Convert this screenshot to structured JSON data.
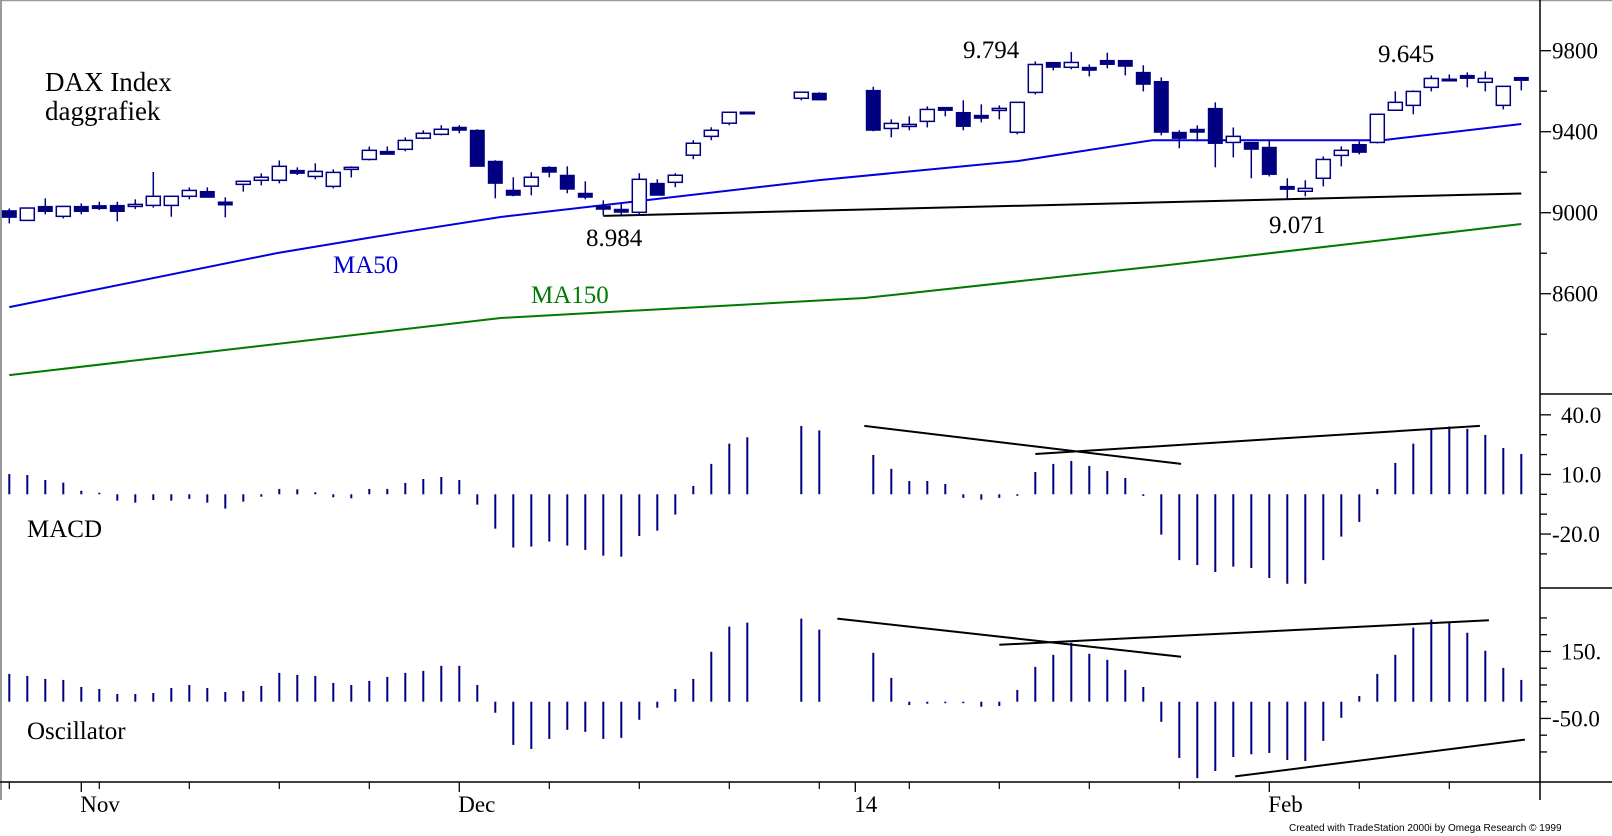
{
  "chart_data": {
    "type": "candlestick",
    "title": "DAX Index",
    "subtitle": "daggrafiek",
    "colors": {
      "candle": "#000080",
      "ma50": "#0000e0",
      "ma150": "#007a00",
      "trendline": "#000000",
      "histogram": "#000080"
    },
    "x_labels": [
      {
        "label": "Nov",
        "bar": 4
      },
      {
        "label": "Dec",
        "bar": 25
      },
      {
        "label": "14",
        "bar": 47
      },
      {
        "label": "Feb",
        "bar": 70
      }
    ],
    "price_panel": {
      "ylim": [
        8200,
        9980
      ],
      "yticks": [
        {
          "label": "9800",
          "value": 9800
        },
        {
          "label": "9400",
          "value": 9400
        },
        {
          "label": "9000",
          "value": 9000
        },
        {
          "label": "8600",
          "value": 8600
        }
      ],
      "minor_ticks": [
        9600,
        9200,
        8800,
        8400
      ],
      "candles_ohlc": [
        [
          9010,
          9021,
          8947,
          8977
        ],
        [
          8962,
          9023,
          8962,
          9023
        ],
        [
          9031,
          9071,
          8992,
          9006
        ],
        [
          8982,
          9031,
          8972,
          9031
        ],
        [
          9031,
          9046,
          8992,
          9006
        ],
        [
          9035,
          9054,
          9013,
          9033
        ],
        [
          9036,
          9054,
          8957,
          9006
        ],
        [
          9031,
          9066,
          9018,
          9041
        ],
        [
          9036,
          9201,
          9025,
          9081
        ],
        [
          9036,
          9081,
          8980,
          9081
        ],
        [
          9081,
          9125,
          9066,
          9110
        ],
        [
          9105,
          9125,
          9076,
          9076
        ],
        [
          9053,
          9076,
          8977,
          9051
        ],
        [
          9140,
          9155,
          9104,
          9155
        ],
        [
          9160,
          9194,
          9135,
          9175
        ],
        [
          9160,
          9258,
          9145,
          9229
        ],
        [
          9209,
          9224,
          9186,
          9199
        ],
        [
          9179,
          9244,
          9165,
          9204
        ],
        [
          9130,
          9214,
          9120,
          9199
        ],
        [
          9214,
          9229,
          9174,
          9224
        ],
        [
          9263,
          9327,
          9258,
          9308
        ],
        [
          9303,
          9327,
          9298,
          9298
        ],
        [
          9313,
          9372,
          9303,
          9357
        ],
        [
          9368,
          9407,
          9363,
          9392
        ],
        [
          9387,
          9432,
          9382,
          9412
        ],
        [
          9422,
          9432,
          9392,
          9407
        ],
        [
          9407,
          9412,
          9229,
          9229
        ],
        [
          9254,
          9259,
          9071,
          9145
        ],
        [
          9111,
          9175,
          9081,
          9086
        ],
        [
          9131,
          9200,
          9086,
          9175
        ],
        [
          9224,
          9229,
          9175,
          9200
        ],
        [
          9185,
          9229,
          9096,
          9116
        ],
        [
          9096,
          9155,
          9066,
          9076
        ],
        [
          9032,
          9061,
          8987,
          9017
        ],
        [
          9017,
          9047,
          8987,
          9007
        ],
        [
          9002,
          9195,
          8984,
          9165
        ],
        [
          9145,
          9165,
          9086,
          9086
        ],
        [
          9150,
          9195,
          9126,
          9185
        ],
        [
          9284,
          9358,
          9264,
          9343
        ],
        [
          9377,
          9422,
          9358,
          9407
        ],
        [
          9442,
          9496,
          9432,
          9496
        ],
        [
          9496,
          9496,
          9496,
          9496
        ],
        null,
        null,
        [
          9565,
          9595,
          9555,
          9595
        ],
        [
          9590,
          9595,
          9557,
          9557
        ],
        null,
        null,
        [
          9604,
          9622,
          9402,
          9407
        ],
        [
          9416,
          9461,
          9372,
          9441
        ],
        [
          9426,
          9476,
          9407,
          9436
        ],
        [
          9451,
          9525,
          9421,
          9510
        ],
        [
          9520,
          9520,
          9476,
          9505
        ],
        [
          9495,
          9555,
          9407,
          9426
        ],
        [
          9481,
          9535,
          9446,
          9480
        ],
        [
          9505,
          9530,
          9461,
          9515
        ],
        [
          9397,
          9545,
          9387,
          9545
        ],
        [
          9594,
          9747,
          9584,
          9732
        ],
        [
          9742,
          9742,
          9703,
          9718
        ],
        [
          9718,
          9794,
          9708,
          9742
        ],
        [
          9718,
          9732,
          9673,
          9717
        ],
        [
          9752,
          9790,
          9713,
          9732
        ],
        [
          9752,
          9752,
          9678,
          9723
        ],
        [
          9693,
          9728,
          9599,
          9634
        ],
        [
          9648,
          9668,
          9382,
          9397
        ],
        [
          9397,
          9407,
          9318,
          9367
        ],
        [
          9412,
          9431,
          9352,
          9411
        ],
        [
          9515,
          9545,
          9224,
          9342
        ],
        [
          9347,
          9421,
          9273,
          9377
        ],
        [
          9347,
          9347,
          9170,
          9313
        ],
        [
          9323,
          9362,
          9179,
          9189
        ],
        [
          9130,
          9170,
          9071,
          9129
        ],
        [
          9106,
          9160,
          9081,
          9120
        ],
        [
          9170,
          9278,
          9130,
          9263
        ],
        [
          9283,
          9328,
          9229,
          9308
        ],
        [
          9337,
          9352,
          9288,
          9298
        ],
        [
          9347,
          9486,
          9342,
          9486
        ],
        [
          9506,
          9599,
          9505,
          9545
        ],
        [
          9530,
          9604,
          9486,
          9599
        ],
        [
          9619,
          9678,
          9599,
          9663
        ],
        [
          9658,
          9683,
          9648,
          9659
        ],
        [
          9678,
          9693,
          9619,
          9663
        ],
        [
          9644,
          9698,
          9599,
          9663
        ],
        [
          9530,
          9624,
          9510,
          9624
        ],
        [
          9668,
          9668,
          9604,
          9658
        ]
      ],
      "ma50": {
        "name": "MA50",
        "points": [
          [
            0,
            8534
          ],
          [
            14.9,
            8801
          ],
          [
            21.7,
            8901
          ],
          [
            27.3,
            8979
          ],
          [
            45,
            9161
          ],
          [
            56,
            9255
          ],
          [
            63.5,
            9358
          ],
          [
            76.3,
            9358
          ],
          [
            84,
            9438
          ]
        ]
      },
      "ma150": {
        "name": "MA150",
        "points": [
          [
            0,
            8198
          ],
          [
            27.3,
            8480
          ],
          [
            47.5,
            8579
          ],
          [
            64.1,
            8739
          ],
          [
            84,
            8944
          ]
        ]
      },
      "support_line": [
        [
          33,
          8984
        ],
        [
          84,
          9095
        ]
      ],
      "annotations": [
        {
          "text": "9.794",
          "value": 9794
        },
        {
          "text": "8.984",
          "value": 8984
        },
        {
          "text": "9.071",
          "value": 9071
        },
        {
          "text": "9.645",
          "value": 9645
        }
      ]
    },
    "macd_panel": {
      "label": "MACD",
      "ylim": [
        -48,
        45
      ],
      "yticks": [
        {
          "label": "40.0",
          "value": 40
        },
        {
          "label": "10.0",
          "value": 10
        },
        {
          "label": "-20.0",
          "value": -20
        }
      ],
      "minor_ticks": [
        30,
        20,
        0,
        -10,
        -30
      ],
      "values": [
        10.2,
        9.7,
        7.2,
        5.9,
        1.8,
        0.8,
        -3.2,
        -4.2,
        -2.9,
        -3.2,
        -2.3,
        -4.2,
        -7.2,
        -3.7,
        -1.2,
        2.7,
        2.5,
        1.0,
        -1.5,
        -2.0,
        2.7,
        2.7,
        5.7,
        7.7,
        8.7,
        7.2,
        -5.2,
        -17.3,
        -26.8,
        -26.3,
        -23.8,
        -25.8,
        -28.0,
        -30.9,
        -31.4,
        -21.0,
        -18.3,
        -10.2,
        4.2,
        15.3,
        25.5,
        28.7,
        null,
        null,
        34.4,
        32.2,
        null,
        null,
        19.8,
        12.8,
        6.7,
        6.7,
        5.2,
        -1.8,
        -2.7,
        -1.8,
        -0.3,
        11.2,
        15.3,
        16.8,
        14.3,
        11.7,
        8.2,
        -0.8,
        -20.3,
        -33.1,
        -35.6,
        -39.1,
        -36.4,
        -37.1,
        -42.1,
        -45.0,
        -45.0,
        -33.1,
        -21.3,
        -13.9,
        2.7,
        15.8,
        25.5,
        33.1,
        34.1,
        32.9,
        29.9,
        23.3,
        20.3
      ],
      "trendlines": [
        [
          [
            47.5,
            34.4
          ],
          [
            65.1,
            15.3
          ]
        ],
        [
          [
            57.0,
            20.3
          ],
          [
            81.7,
            34.4
          ]
        ]
      ]
    },
    "oscillator_panel": {
      "label": "Oscillator",
      "ylim": [
        -240,
        300
      ],
      "yticks": [
        {
          "label": "150.",
          "value": 150
        },
        {
          "label": "-50.0",
          "value": -50
        }
      ],
      "minor_ticks": [
        250,
        200,
        100,
        50,
        0,
        -100,
        -150
      ],
      "values": [
        83,
        77,
        68,
        65,
        44,
        38,
        23,
        23,
        26,
        41,
        50,
        41,
        29,
        32,
        47,
        86,
        80,
        77,
        56,
        50,
        62,
        74,
        86,
        92,
        107,
        107,
        50,
        -33,
        -129,
        -141,
        -111,
        -84,
        -90,
        -111,
        -108,
        -54,
        -18,
        38,
        68,
        149,
        224,
        236,
        null,
        null,
        248,
        215,
        null,
        null,
        146,
        71,
        -10,
        -6,
        -2,
        -3,
        -15,
        -13,
        35,
        104,
        140,
        176,
        143,
        125,
        95,
        44,
        -60,
        -168,
        -228,
        -207,
        -165,
        -157,
        -153,
        -174,
        -177,
        -117,
        -48,
        17,
        83,
        140,
        221,
        245,
        239,
        206,
        152,
        101,
        65
      ],
      "trendlines": [
        [
          [
            46.0,
            248
          ],
          [
            65.1,
            134
          ]
        ],
        [
          [
            55.0,
            170
          ],
          [
            82.2,
            243
          ]
        ],
        [
          [
            68.1,
            -223
          ],
          [
            84.2,
            -113
          ]
        ]
      ]
    }
  },
  "footer": {
    "credit": "Created with TradeStation 2000i by Omega Research © 1999"
  }
}
